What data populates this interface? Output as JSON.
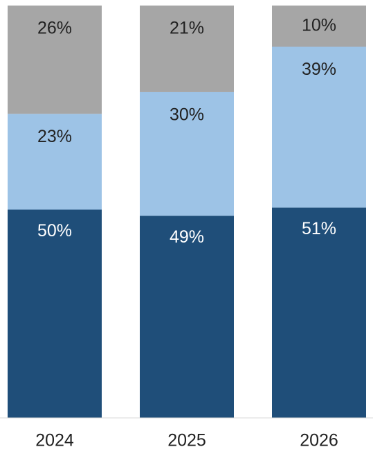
{
  "chart_data": {
    "type": "bar",
    "stacked": true,
    "categories": [
      "2024",
      "2025",
      "2026"
    ],
    "series": [
      {
        "values": [
          50,
          49,
          51
        ],
        "labels": [
          "50%",
          "49%",
          "51%"
        ],
        "color": "#1f4e79",
        "label_color": "#ffffff"
      },
      {
        "values": [
          23,
          30,
          39
        ],
        "labels": [
          "23%",
          "30%",
          "39%"
        ],
        "color": "#9dc3e6",
        "label_color": "#222222"
      },
      {
        "values": [
          26,
          21,
          10
        ],
        "labels": [
          "26%",
          "21%",
          "10%"
        ],
        "color": "#a6a6a6",
        "label_color": "#222222"
      }
    ],
    "ylim": [
      0,
      100
    ],
    "title": "",
    "xlabel": "",
    "ylabel": "",
    "grid": false,
    "legend": "none"
  }
}
